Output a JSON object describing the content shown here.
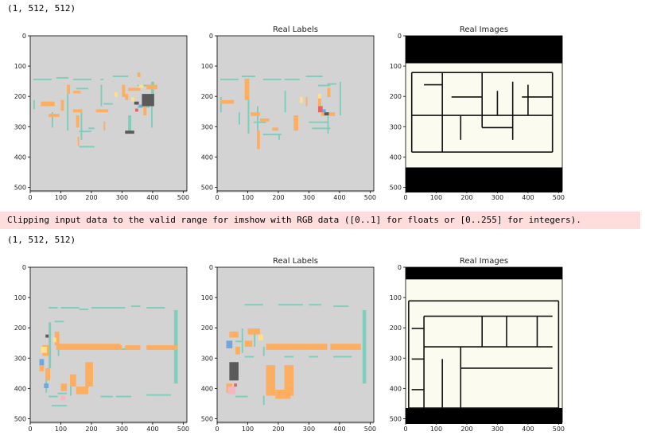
{
  "outputs": {
    "shape1": "(1, 512, 512)",
    "warning": "Clipping input data to the valid range for imshow with RGB data ([0..1] for floats or [0..255] for integers).",
    "shape2": "(1, 512, 512)"
  },
  "colors": {
    "bg": "#d3d3d3",
    "wall": "#7fcdbb",
    "window": "#fdae61",
    "door": "#fee08b",
    "room_dark": "#5a5a5a",
    "room_blue": "#6fa8dc",
    "room_red": "#e06666",
    "room_pink": "#f4b6c2",
    "paper": "#fbfbf0",
    "black": "#000000"
  },
  "chart_data": [
    {
      "type": "heatmap",
      "title": "",
      "row": 1,
      "kind": "prediction",
      "xticks": [
        "0",
        "100",
        "200",
        "300",
        "400",
        "500"
      ],
      "yticks": [
        "0",
        "100",
        "200",
        "300",
        "400",
        "500"
      ],
      "xlim": [
        0,
        512
      ],
      "ylim": [
        512,
        0
      ]
    },
    {
      "type": "heatmap",
      "title": "Real Labels",
      "row": 1,
      "kind": "label",
      "xticks": [
        "0",
        "100",
        "200",
        "300",
        "400",
        "500"
      ],
      "yticks": [
        "0",
        "100",
        "200",
        "300",
        "400",
        "500"
      ],
      "xlim": [
        0,
        512
      ],
      "ylim": [
        512,
        0
      ]
    },
    {
      "type": "heatmap",
      "title": "Real Images",
      "row": 1,
      "kind": "image",
      "xticks": [
        "0",
        "100",
        "200",
        "300",
        "400",
        "500"
      ],
      "yticks": [
        "0",
        "100",
        "200",
        "300",
        "400",
        "500"
      ],
      "xlim": [
        0,
        512
      ],
      "ylim": [
        512,
        0
      ]
    },
    {
      "type": "heatmap",
      "title": "",
      "row": 2,
      "kind": "prediction",
      "xticks": [
        "0",
        "100",
        "200",
        "300",
        "400",
        "500"
      ],
      "yticks": [
        "0",
        "100",
        "200",
        "300",
        "400",
        "500"
      ],
      "xlim": [
        0,
        512
      ],
      "ylim": [
        512,
        0
      ]
    },
    {
      "type": "heatmap",
      "title": "Real Labels",
      "row": 2,
      "kind": "label",
      "xticks": [
        "0",
        "100",
        "200",
        "300",
        "400",
        "500"
      ],
      "yticks": [
        "0",
        "100",
        "200",
        "300",
        "400",
        "500"
      ],
      "xlim": [
        0,
        512
      ],
      "ylim": [
        512,
        0
      ]
    },
    {
      "type": "heatmap",
      "title": "Real Images",
      "row": 2,
      "kind": "image",
      "xticks": [
        "0",
        "100",
        "200",
        "300",
        "400",
        "500"
      ],
      "yticks": [
        "0",
        "100",
        "200",
        "300",
        "400",
        "500"
      ],
      "xlim": [
        0,
        512
      ],
      "ylim": [
        512,
        0
      ]
    }
  ]
}
